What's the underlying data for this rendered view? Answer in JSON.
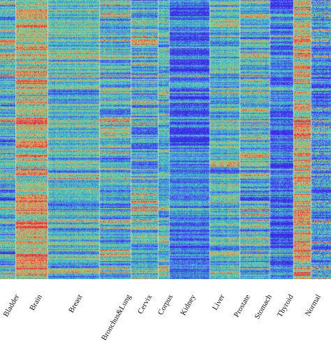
{
  "chart_data": {
    "type": "heatmap",
    "title": "",
    "xlabel": "",
    "ylabel": "",
    "groups": [
      {
        "label": "Bladder",
        "shown_text": "Bladder",
        "profile": "mixed"
      },
      {
        "label": "Brain",
        "shown_text": "Brain",
        "profile": "hot"
      },
      {
        "label": "Breast",
        "shown_text": "Breast",
        "profile": "teal"
      },
      {
        "label": "Bronchus&Lung",
        "shown_text": "Bronchus&Lung",
        "profile": "mixed"
      },
      {
        "label": "Cervix",
        "shown_text": "Cervix",
        "profile": "mixed"
      },
      {
        "label": "Corpus",
        "shown_text": "Corpus",
        "profile": "teal"
      },
      {
        "label": "Kidney",
        "shown_text": "Kidney",
        "profile": "blue"
      },
      {
        "label": "Liver",
        "shown_text": "Liver",
        "profile": "teal"
      },
      {
        "label": "Prostate",
        "shown_text": "Prostate",
        "profile": "mixed"
      },
      {
        "label": "Stomach",
        "shown_text": "Stomach",
        "profile": "blue"
      },
      {
        "label": "Thyroid",
        "shown_text": "Thyroid",
        "profile": "hot"
      },
      {
        "label": "Normal",
        "shown_text": "Normal",
        "profile": "sparse"
      }
    ],
    "colormap": [
      "#3a2be0",
      "#4f6ef2",
      "#39b5c9",
      "#6fd6a0",
      "#f0a04c",
      "#e0314a"
    ],
    "grid": false,
    "legend": "none"
  }
}
